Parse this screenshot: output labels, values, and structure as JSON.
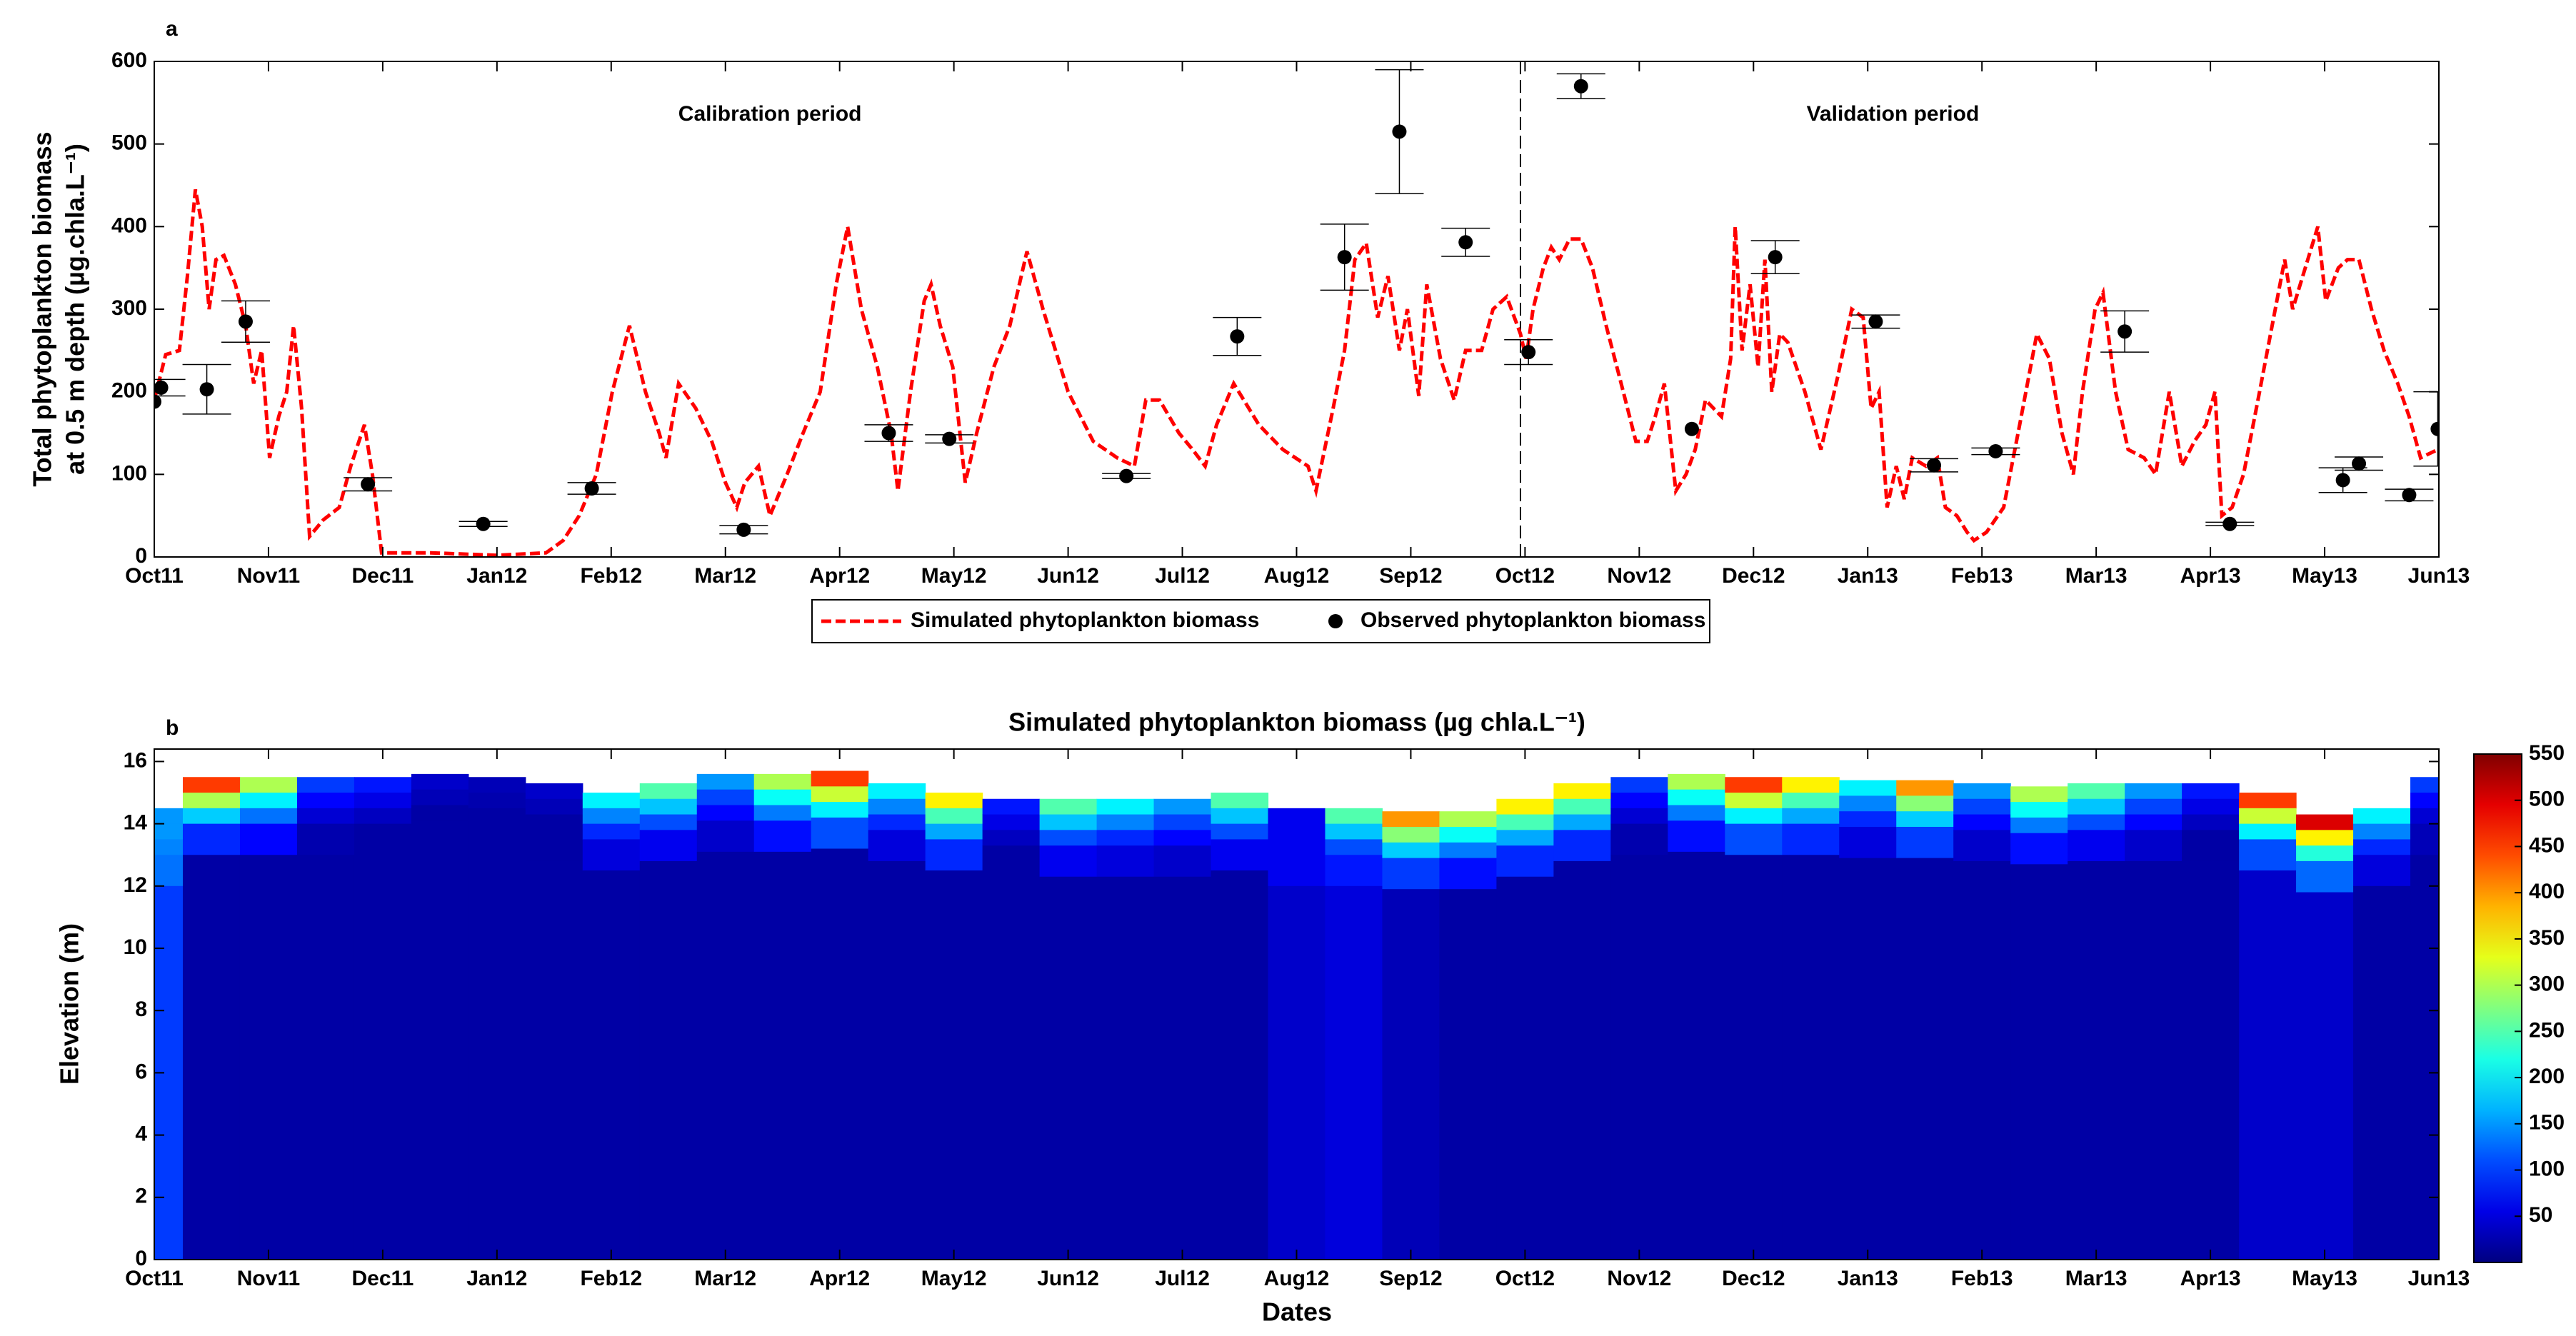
{
  "chart_data": [
    {
      "type": "line",
      "panel": "a",
      "ylabel": [
        "Total phytoplankton biomass",
        "at 0.5 m depth (µg.chla.L⁻¹)"
      ],
      "annotations": [
        {
          "text": "Calibration period",
          "x": 5.39,
          "y": 535
        },
        {
          "text": "Validation period",
          "x": 15.22,
          "y": 535
        }
      ],
      "divider_x": 11.96,
      "xlim": [
        0,
        20
      ],
      "xticks": [
        {
          "value": 0,
          "label": "Oct11"
        },
        {
          "value": 1,
          "label": "Nov11"
        },
        {
          "value": 2,
          "label": "Dec11"
        },
        {
          "value": 3,
          "label": "Jan12"
        },
        {
          "value": 4,
          "label": "Feb12"
        },
        {
          "value": 5,
          "label": "Mar12"
        },
        {
          "value": 6,
          "label": "Apr12"
        },
        {
          "value": 7,
          "label": "May12"
        },
        {
          "value": 8,
          "label": "Jun12"
        },
        {
          "value": 9,
          "label": "Jul12"
        },
        {
          "value": 10,
          "label": "Aug12"
        },
        {
          "value": 11,
          "label": "Sep12"
        },
        {
          "value": 12,
          "label": "Oct12"
        },
        {
          "value": 13,
          "label": "Nov12"
        },
        {
          "value": 14,
          "label": "Dec12"
        },
        {
          "value": 15,
          "label": "Jan13"
        },
        {
          "value": 16,
          "label": "Feb13"
        },
        {
          "value": 17,
          "label": "Mar13"
        },
        {
          "value": 18,
          "label": "Apr13"
        },
        {
          "value": 19,
          "label": "May13"
        },
        {
          "value": 20,
          "label": "Jun13"
        }
      ],
      "ylim": [
        0,
        600
      ],
      "yticks": [
        0,
        100,
        200,
        300,
        400,
        500,
        600
      ],
      "legend": "bottom-outside",
      "series": [
        {
          "name": "Simulated phytoplankton biomass",
          "color": "#ff0000",
          "style": "dashed",
          "x": [
            0.0,
            0.1,
            0.22,
            0.29,
            0.36,
            0.42,
            0.48,
            0.54,
            0.61,
            0.71,
            0.8,
            0.87,
            0.94,
            1.01,
            1.09,
            1.16,
            1.22,
            1.29,
            1.36,
            1.48,
            1.62,
            1.72,
            1.84,
            1.91,
            1.99,
            2.13,
            2.42,
            3.0,
            3.43,
            3.58,
            3.72,
            3.87,
            4.01,
            4.16,
            4.3,
            4.42,
            4.48,
            4.59,
            4.74,
            4.88,
            5.0,
            5.1,
            5.17,
            5.29,
            5.39,
            5.54,
            5.68,
            5.83,
            5.97,
            6.07,
            6.19,
            6.33,
            6.45,
            6.51,
            6.62,
            6.74,
            6.8,
            6.88,
            6.99,
            7.1,
            7.2,
            7.35,
            7.49,
            7.64,
            7.78,
            8.0,
            8.22,
            8.43,
            8.58,
            8.68,
            8.8,
            8.97,
            9.09,
            9.2,
            9.3,
            9.45,
            9.67,
            9.88,
            10.1,
            10.17,
            10.32,
            10.42,
            10.51,
            10.61,
            10.71,
            10.8,
            10.9,
            10.97,
            11.07,
            11.14,
            11.26,
            11.38,
            11.48,
            11.62,
            11.72,
            11.84,
            11.96,
            12.01,
            12.07,
            12.16,
            12.23,
            12.3,
            12.39,
            12.49,
            12.59,
            12.71,
            12.86,
            12.97,
            13.07,
            13.14,
            13.22,
            13.32,
            13.41,
            13.49,
            13.58,
            13.72,
            13.8,
            13.84,
            13.9,
            13.97,
            14.04,
            14.1,
            14.16,
            14.23,
            14.3,
            14.45,
            14.59,
            14.74,
            14.86,
            14.96,
            15.03,
            15.1,
            15.17,
            15.25,
            15.32,
            15.39,
            15.51,
            15.61,
            15.68,
            15.78,
            15.87,
            15.93,
            16.04,
            16.19,
            16.33,
            16.48,
            16.59,
            16.7,
            16.8,
            16.88,
            16.99,
            17.06,
            17.17,
            17.28,
            17.42,
            17.52,
            17.64,
            17.75,
            17.86,
            17.96,
            18.04,
            18.1,
            18.19,
            18.29,
            18.43,
            18.54,
            18.65,
            18.72,
            18.83,
            18.94,
            19.01,
            19.12,
            19.2,
            19.3,
            19.41,
            19.52,
            19.64,
            19.74,
            19.84,
            19.99
          ],
          "values": [
            190,
            245,
            250,
            340,
            445,
            400,
            300,
            360,
            365,
            330,
            280,
            210,
            250,
            120,
            170,
            200,
            280,
            180,
            25,
            45,
            60,
            110,
            160,
            100,
            5,
            5,
            5,
            2,
            5,
            20,
            50,
            100,
            200,
            280,
            200,
            150,
            120,
            210,
            180,
            140,
            90,
            60,
            90,
            110,
            50,
            100,
            150,
            200,
            330,
            400,
            300,
            230,
            150,
            80,
            200,
            310,
            330,
            280,
            230,
            90,
            150,
            230,
            280,
            370,
            300,
            200,
            140,
            120,
            110,
            190,
            190,
            150,
            130,
            110,
            160,
            210,
            160,
            130,
            110,
            80,
            180,
            250,
            360,
            380,
            290,
            340,
            250,
            300,
            195,
            330,
            240,
            190,
            250,
            250,
            300,
            315,
            270,
            240,
            300,
            350,
            375,
            360,
            385,
            385,
            350,
            280,
            200,
            140,
            140,
            170,
            210,
            80,
            100,
            130,
            190,
            170,
            240,
            400,
            250,
            330,
            230,
            360,
            200,
            270,
            260,
            200,
            130,
            220,
            300,
            290,
            180,
            200,
            60,
            110,
            70,
            120,
            110,
            120,
            60,
            50,
            30,
            20,
            30,
            60,
            160,
            270,
            240,
            150,
            100,
            200,
            300,
            320,
            200,
            130,
            120,
            100,
            200,
            110,
            140,
            160,
            200,
            50,
            60,
            100,
            200,
            280,
            360,
            300,
            350,
            400,
            310,
            350,
            360,
            360,
            300,
            250,
            210,
            170,
            120,
            130
          ]
        },
        {
          "name": "Observed phytoplankton biomass",
          "color": "#000000",
          "type": "scatter",
          "x": [
            0.0,
            0.06,
            0.46,
            0.8,
            1.87,
            2.88,
            3.83,
            5.16,
            6.43,
            6.96,
            8.51,
            9.48,
            10.42,
            10.9,
            11.48,
            12.03,
            12.49,
            13.46,
            14.19,
            15.07,
            15.58,
            16.12,
            17.25,
            18.17,
            19.16,
            19.3,
            19.74,
            19.99
          ],
          "values": [
            188,
            205,
            203,
            285,
            88,
            40,
            83,
            33,
            150,
            143,
            98,
            267,
            363,
            515,
            381,
            248,
            570,
            155,
            363,
            285,
            111,
            128,
            273,
            40,
            93,
            113,
            75,
            155
          ],
          "errors": [
            null,
            10,
            30,
            25,
            8,
            3,
            7,
            5,
            10,
            5,
            3,
            23,
            40,
            75,
            17,
            15,
            15,
            null,
            20,
            8,
            8,
            4,
            25,
            2,
            15,
            8,
            7,
            45
          ]
        }
      ]
    },
    {
      "type": "contour",
      "panel": "b",
      "title": "Simulated phytoplankton biomass (µg chla.L⁻¹)",
      "xlabel": "Dates",
      "ylabel": "Elevation (m)",
      "xlim": [
        0,
        20
      ],
      "xticks": [
        {
          "value": 0,
          "label": "Oct11"
        },
        {
          "value": 1,
          "label": "Nov11"
        },
        {
          "value": 2,
          "label": "Dec11"
        },
        {
          "value": 3,
          "label": "Jan12"
        },
        {
          "value": 4,
          "label": "Feb12"
        },
        {
          "value": 5,
          "label": "Mar12"
        },
        {
          "value": 6,
          "label": "Apr12"
        },
        {
          "value": 7,
          "label": "May12"
        },
        {
          "value": 8,
          "label": "Jun12"
        },
        {
          "value": 9,
          "label": "Jul12"
        },
        {
          "value": 10,
          "label": "Aug12"
        },
        {
          "value": 11,
          "label": "Sep12"
        },
        {
          "value": 12,
          "label": "Oct12"
        },
        {
          "value": 13,
          "label": "Nov12"
        },
        {
          "value": 14,
          "label": "Dec12"
        },
        {
          "value": 15,
          "label": "Jan13"
        },
        {
          "value": 16,
          "label": "Feb13"
        },
        {
          "value": 17,
          "label": "Mar13"
        },
        {
          "value": 18,
          "label": "Apr13"
        },
        {
          "value": 19,
          "label": "May13"
        },
        {
          "value": 20,
          "label": "Jun13"
        }
      ],
      "ylim": [
        0,
        16.4
      ],
      "yticks": [
        0,
        2,
        4,
        6,
        8,
        10,
        12,
        14,
        16
      ],
      "colormap": "jet",
      "colorbar": {
        "lim": [
          0,
          550
        ],
        "ticks": [
          50,
          100,
          150,
          200,
          250,
          300,
          350,
          400,
          450,
          500,
          550
        ]
      },
      "x": [
        0,
        0.5,
        1,
        1.5,
        2,
        2.5,
        3,
        3.5,
        4,
        4.5,
        5,
        5.5,
        6,
        6.5,
        7,
        7.5,
        8,
        8.5,
        9,
        9.5,
        10,
        10.5,
        11,
        11.5,
        12,
        12.5,
        13,
        13.5,
        14,
        14.5,
        15,
        15.5,
        16,
        16.5,
        17,
        17.5,
        18,
        18.5,
        19,
        19.5,
        20
      ],
      "surface": [
        14.5,
        15.5,
        15.5,
        15.5,
        15.5,
        15.6,
        15.5,
        15.3,
        15.0,
        15.3,
        15.6,
        15.6,
        15.7,
        15.3,
        15.0,
        14.8,
        14.8,
        14.8,
        14.8,
        15.0,
        14.5,
        14.5,
        14.4,
        14.4,
        14.8,
        15.3,
        15.5,
        15.6,
        15.5,
        15.5,
        15.4,
        15.4,
        15.3,
        15.2,
        15.3,
        15.3,
        15.3,
        15.0,
        14.3,
        14.5,
        15.5
      ],
      "depths": [
        0,
        0.5,
        1,
        1.5,
        2.5
      ],
      "z": [
        [
          150,
          150,
          140,
          130,
          100
        ],
        [
          450,
          300,
          180,
          90,
          20
        ],
        [
          300,
          200,
          130,
          70,
          20
        ],
        [
          100,
          70,
          45,
          25,
          20
        ],
        [
          80,
          55,
          35,
          20,
          20
        ],
        [
          40,
          30,
          20,
          20,
          20
        ],
        [
          30,
          25,
          20,
          20,
          20
        ],
        [
          40,
          30,
          20,
          20,
          20
        ],
        [
          200,
          140,
          90,
          50,
          20
        ],
        [
          250,
          175,
          110,
          60,
          20
        ],
        [
          150,
          105,
          70,
          40,
          20
        ],
        [
          300,
          210,
          135,
          75,
          20
        ],
        [
          450,
          315,
          200,
          110,
          20
        ],
        [
          200,
          140,
          90,
          50,
          20
        ],
        [
          350,
          245,
          160,
          90,
          20
        ],
        [
          80,
          55,
          35,
          20,
          20
        ],
        [
          250,
          175,
          110,
          60,
          20
        ],
        [
          200,
          140,
          90,
          50,
          20
        ],
        [
          150,
          105,
          70,
          40,
          20
        ],
        [
          250,
          175,
          110,
          60,
          20
        ],
        [
          60,
          60,
          60,
          60,
          40
        ],
        [
          250,
          175,
          110,
          80,
          50
        ],
        [
          400,
          280,
          180,
          100,
          30
        ],
        [
          300,
          210,
          135,
          75,
          20
        ],
        [
          350,
          245,
          160,
          90,
          20
        ],
        [
          350,
          245,
          160,
          90,
          20
        ],
        [
          100,
          70,
          45,
          25,
          20
        ],
        [
          300,
          210,
          135,
          75,
          20
        ],
        [
          450,
          315,
          200,
          110,
          20
        ],
        [
          350,
          245,
          160,
          90,
          20
        ],
        [
          200,
          140,
          90,
          50,
          20
        ],
        [
          400,
          280,
          180,
          100,
          20
        ],
        [
          150,
          105,
          70,
          40,
          20
        ],
        [
          300,
          210,
          135,
          75,
          20
        ],
        [
          250,
          175,
          110,
          60,
          20
        ],
        [
          150,
          105,
          70,
          40,
          20
        ],
        [
          80,
          55,
          35,
          20,
          20
        ],
        [
          450,
          315,
          200,
          110,
          40
        ],
        [
          500,
          350,
          225,
          125,
          40
        ],
        [
          200,
          140,
          90,
          50,
          20
        ],
        [
          100,
          70,
          45,
          30,
          20
        ]
      ]
    }
  ]
}
